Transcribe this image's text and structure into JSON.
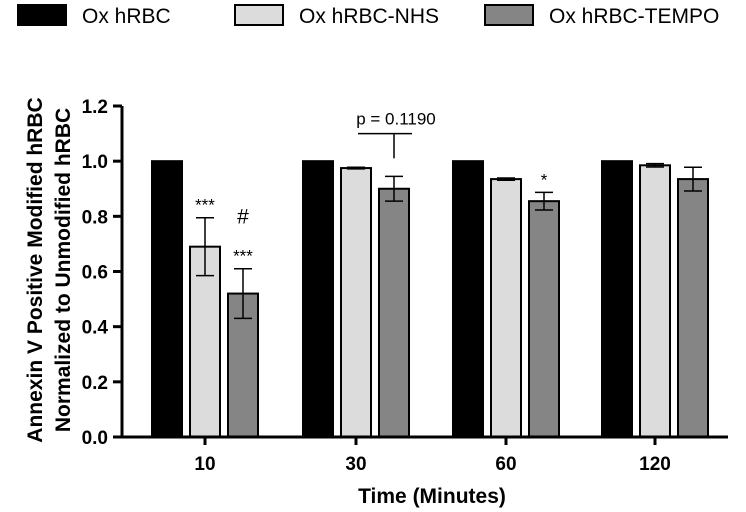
{
  "chart_data": {
    "type": "bar",
    "xlabel": "Time  (Minutes)",
    "ylabel_lines": [
      "Annexin V Positive Modified hRBC",
      "Normalized to Unmodified hRBC"
    ],
    "categories": [
      "10",
      "30",
      "60",
      "120"
    ],
    "ylim": [
      0,
      1.2
    ],
    "yticks": [
      "0.0",
      "0.2",
      "0.4",
      "0.6",
      "0.8",
      "1.0",
      "1.2"
    ],
    "legend_position": "top",
    "series": [
      {
        "name": "Ox hRBC",
        "color": "#000000",
        "values": [
          1.0,
          1.0,
          1.0,
          1.0
        ],
        "errors": [
          0,
          0,
          0,
          0
        ]
      },
      {
        "name": "Ox hRBC-NHS",
        "color": "#dcdcdc",
        "values": [
          0.69,
          0.975,
          0.935,
          0.985
        ],
        "errors": [
          0.105,
          0.003,
          0.004,
          0.006
        ]
      },
      {
        "name": "Ox hRBC-TEMPO",
        "color": "#858585",
        "values": [
          0.52,
          0.9,
          0.855,
          0.935
        ],
        "errors": [
          0.09,
          0.045,
          0.032,
          0.043
        ]
      }
    ],
    "annotations": [
      {
        "category": 0,
        "series": 1,
        "text": "***"
      },
      {
        "category": 0,
        "series": 2,
        "text": "***"
      },
      {
        "category": 0,
        "series": 2,
        "text": "#"
      },
      {
        "category": 2,
        "series": 2,
        "text": "*"
      }
    ],
    "pvalue_bracket": {
      "category": 1,
      "text": "p = 0.1190",
      "y": 1.1
    }
  }
}
